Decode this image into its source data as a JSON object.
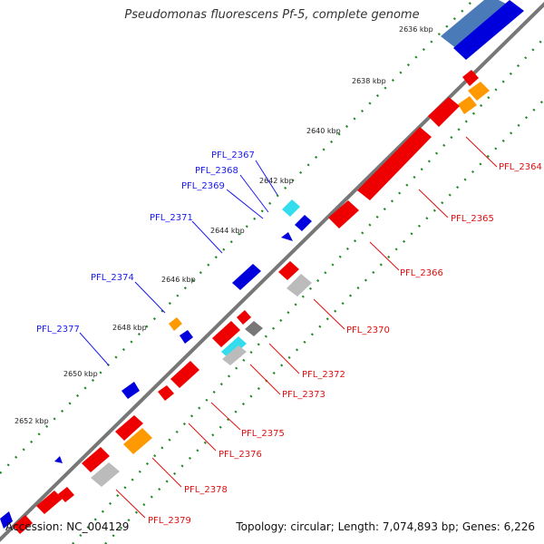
{
  "title": "Pseudomonas fluorescens Pf-5, complete genome",
  "footer": {
    "accession": "Accession: NC_004129",
    "summary": "Topology: circular; Length: 7,074,893 bp; Genes: 6,226"
  },
  "colors": {
    "forward_gene": "#0000dd",
    "reverse_gene": "#ee0000",
    "backbone": "#777777",
    "tick_dots": "#228822",
    "label_forward": "#1a1aee",
    "label_reverse": "#dd1111",
    "orange": "#ff9900",
    "cyan": "#33ddee",
    "gray": "#bbbbbb",
    "darkgray": "#777777",
    "steelblue": "#4477bb"
  },
  "kbp_ticks": [
    "2636 kbp",
    "2638 kbp",
    "2640 kbp",
    "2642 kbp",
    "2644 kbp",
    "2646 kbp",
    "2648 kbp",
    "2650 kbp",
    "2652 kbp"
  ],
  "forward_labels": [
    "PFL_2367",
    "PFL_2368",
    "PFL_2369",
    "PFL_2371",
    "PFL_2374",
    "PFL_2377"
  ],
  "reverse_labels": [
    "PFL_2364",
    "PFL_2365",
    "PFL_2366",
    "PFL_2370",
    "PFL_2372",
    "PFL_2373",
    "PFL_2375",
    "PFL_2376",
    "PFL_2378",
    "PFL_2379"
  ]
}
